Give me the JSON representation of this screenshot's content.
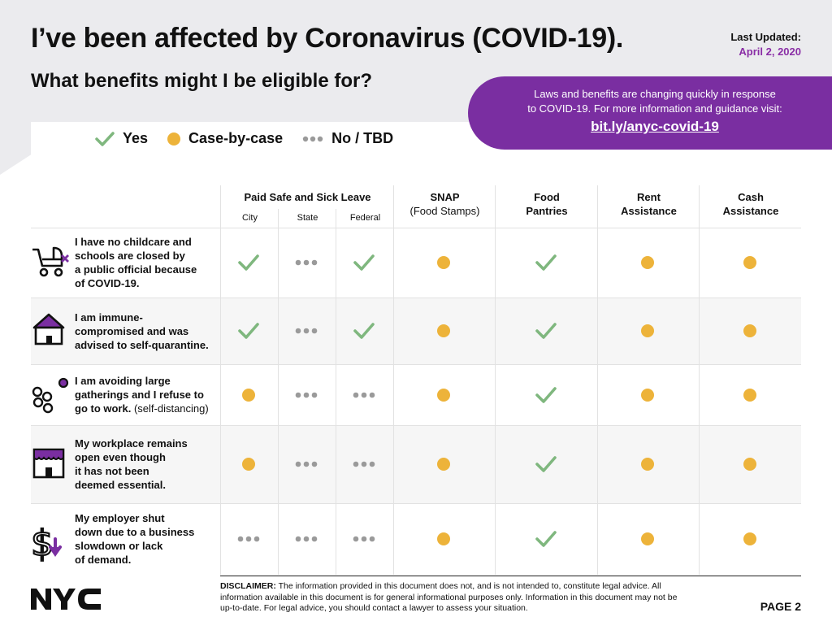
{
  "header": {
    "title": "I’ve been affected by Coronavirus (COVID-19).",
    "subtitle": "What benefits might I be eligible for?",
    "updated_label": "Last Updated:",
    "updated_date": "April 2, 2020"
  },
  "info_box": {
    "line1": "Laws and benefits are changing quickly in response",
    "line2": "to COVID-19. For more information and guidance visit:",
    "link": "bit.ly/anyc-covid-19"
  },
  "legend": {
    "yes": "Yes",
    "case": "Case-by-case",
    "no": "No / TBD"
  },
  "columns": {
    "paid_leave": "Paid Safe and Sick Leave",
    "city": "City",
    "state": "State",
    "federal": "Federal",
    "snap": "SNAP",
    "snap_sub": "(Food Stamps)",
    "food1": "Food",
    "food2": "Pantries",
    "rent1": "Rent",
    "rent2": "Assistance",
    "cash1": "Cash",
    "cash2": "Assistance"
  },
  "rows": [
    {
      "lines": [
        "I have no childcare and",
        "schools are closed by",
        "a public official because",
        "of COVID-19."
      ],
      "note": "",
      "icon": "stroller-icon",
      "values": [
        "yes",
        "no",
        "yes",
        "case",
        "yes",
        "case",
        "case"
      ]
    },
    {
      "lines": [
        "I am immune-",
        "compromised and was",
        "advised to self-quarantine."
      ],
      "note": "",
      "icon": "house-icon",
      "values": [
        "yes",
        "no",
        "yes",
        "case",
        "yes",
        "case",
        "case"
      ]
    },
    {
      "lines": [
        "I am avoiding large",
        "gatherings and I refuse to",
        "go to work."
      ],
      "note": " (self-distancing)",
      "icon": "circles-icon",
      "values": [
        "case",
        "no",
        "no",
        "case",
        "yes",
        "case",
        "case"
      ]
    },
    {
      "lines": [
        "My workplace remains",
        "open even though",
        "it has not been",
        "deemed essential."
      ],
      "note": "",
      "icon": "storefront-icon",
      "values": [
        "case",
        "no",
        "no",
        "case",
        "yes",
        "case",
        "case"
      ]
    },
    {
      "lines": [
        "My employer shut",
        "down due to a business",
        "slowdown or lack",
        "of demand."
      ],
      "note": "",
      "icon": "dollar-down-icon",
      "values": [
        "no",
        "no",
        "no",
        "case",
        "yes",
        "case",
        "case"
      ]
    }
  ],
  "footer": {
    "disclaimer_label": "DISCLAIMER:",
    "disclaimer_text": " The information provided in this document does not, and is not intended to, constitute legal advice. All information available in this document is for general informational purposes only. Information in this document may not be up-to-date. For legal advice, you should contact a lawyer to assess your situation.",
    "page": "PAGE 2",
    "logo": "NYC"
  },
  "colors": {
    "yes": "#7fb77e",
    "case": "#edb33a",
    "no": "#9a9a9a",
    "purple": "#7a2ea1"
  }
}
